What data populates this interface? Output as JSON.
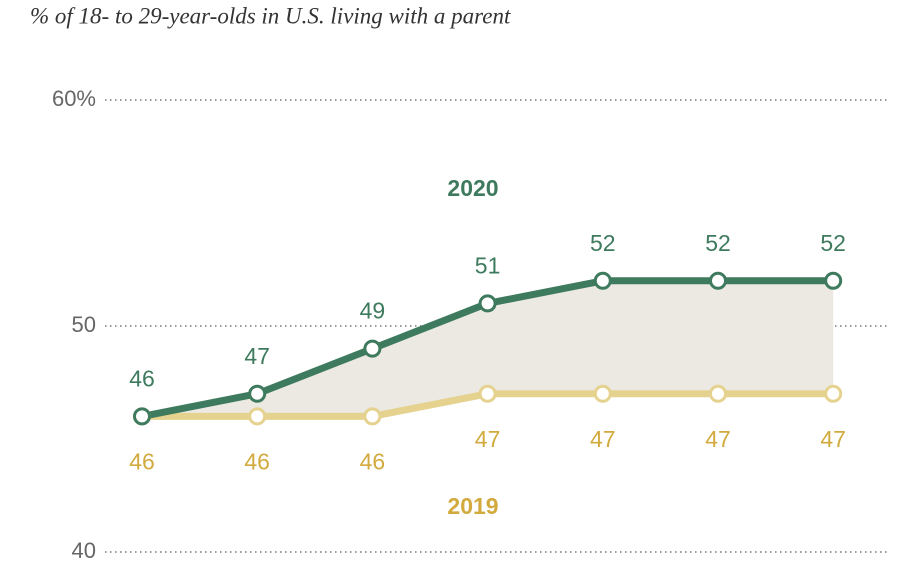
{
  "chart_data": {
    "type": "line",
    "title": "% of 18- to 29-year-olds in U.S. living with a parent",
    "categories": [
      null,
      null,
      null,
      null,
      null,
      null,
      null
    ],
    "series": [
      {
        "name": "2020",
        "color": "#3e7a5d",
        "label_color": "#3e7a5d",
        "values": [
          46,
          47,
          49,
          51,
          52,
          52,
          52
        ]
      },
      {
        "name": "2019",
        "color": "#e6d28f",
        "label_color": "#d2aa3e",
        "values": [
          46,
          46,
          46,
          47,
          47,
          47,
          47
        ]
      }
    ],
    "area_color": "#ebe9e1",
    "ylim": [
      40,
      60
    ],
    "yticks": [
      40,
      50,
      {
        "value": 60,
        "label": "60%"
      }
    ],
    "grid": true
  }
}
